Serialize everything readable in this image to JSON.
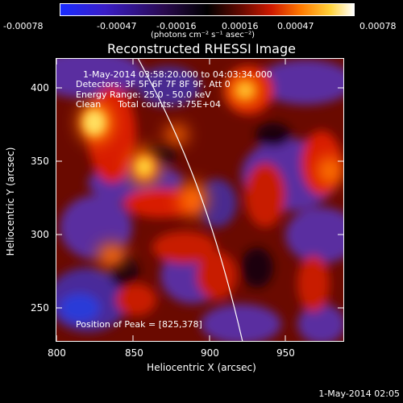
{
  "colorbar": {
    "ticks": [
      "-0.00078",
      "-0.00047",
      "-0.00016",
      "0.00016",
      "0.00047",
      "0.00078"
    ],
    "units": "(photons cm⁻² s⁻¹ asec⁻²)",
    "stops": [
      "#1a2cff",
      "#3a1ec8",
      "#2a0a50",
      "#000000",
      "#6a0a00",
      "#d01a00",
      "#ff7a00",
      "#ffd23a",
      "#ffffff"
    ]
  },
  "title": "Reconstructed RHESSI Image",
  "info": {
    "time": "1-May-2014 03:58:20.000 to 04:03:34.000",
    "detectors": "Detectors: 3F 5F 6F 7F 8F 9F, Att 0",
    "energy": "Energy Range: 25.0 - 50.0 keV",
    "clean": "Clean      Total counts: 3.75E+04",
    "peak": "Position of Peak = [825,378]"
  },
  "axes": {
    "xlabel": "Heliocentric X (arcsec)",
    "ylabel": "Heliocentric Y (arcsec)",
    "xticks": [
      "800",
      "850",
      "900",
      "950"
    ],
    "yticks": [
      "250",
      "300",
      "350",
      "400"
    ]
  },
  "footer": "1-May-2014 02:05"
}
